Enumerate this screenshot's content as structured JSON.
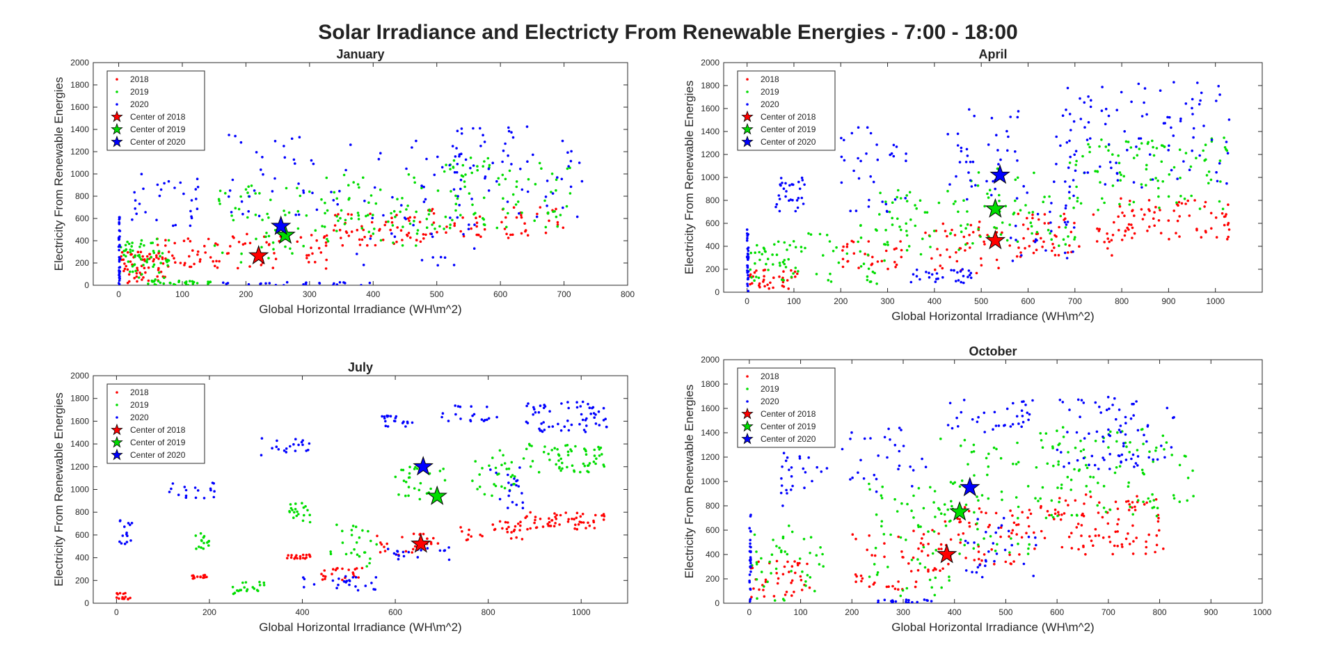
{
  "figure": {
    "title": "Solar Irradiance and Electricty From Renewable Energies - 7:00 - 18:00"
  },
  "colors": {
    "2018": "#ff0000",
    "2019": "#00dd00",
    "2020": "#0000ff",
    "axis": "#262626"
  },
  "chart_data": [
    {
      "type": "scatter",
      "title": "January",
      "xlabel": "Global Horizontal Irradiance (WH\\m^2)",
      "ylabel": "Electricity From Renewable Energies",
      "xlim": [
        -40,
        800
      ],
      "ylim": [
        0,
        2000
      ],
      "xticks": [
        0,
        100,
        200,
        300,
        400,
        500,
        600,
        700,
        800
      ],
      "yticks": [
        0,
        200,
        400,
        600,
        800,
        1000,
        1200,
        1400,
        1600,
        1800,
        2000
      ],
      "legend": [
        "2018",
        "2019",
        "2020",
        "Center of 2018",
        "Center of 2019",
        "Center of 2020"
      ],
      "legend_position": "top-left",
      "centers": [
        {
          "name": "Center of 2018",
          "x": 220,
          "y": 265
        },
        {
          "name": "Center of 2019",
          "x": 262,
          "y": 450
        },
        {
          "name": "Center of 2020",
          "x": 255,
          "y": 530
        }
      ],
      "series": [
        {
          "name": "2018",
          "clusters": [
            {
              "x0": 0,
              "x1": 80,
              "y0": 20,
              "y1": 300,
              "n": 60
            },
            {
              "x0": 60,
              "x1": 160,
              "y0": 150,
              "y1": 420,
              "n": 40
            },
            {
              "x0": 170,
              "x1": 330,
              "y0": 150,
              "y1": 480,
              "n": 45
            },
            {
              "x0": 320,
              "x1": 480,
              "y0": 350,
              "y1": 650,
              "n": 55
            },
            {
              "x0": 470,
              "x1": 700,
              "y0": 420,
              "y1": 700,
              "n": 55
            }
          ]
        },
        {
          "name": "2019",
          "clusters": [
            {
              "x0": 0,
              "x1": 80,
              "y0": 40,
              "y1": 420,
              "n": 60
            },
            {
              "x0": 40,
              "x1": 150,
              "y0": 0,
              "y1": 40,
              "n": 30
            },
            {
              "x0": 150,
              "x1": 330,
              "y0": 200,
              "y1": 900,
              "n": 55
            },
            {
              "x0": 320,
              "x1": 500,
              "y0": 350,
              "y1": 1000,
              "n": 65
            },
            {
              "x0": 480,
              "x1": 710,
              "y0": 500,
              "y1": 1150,
              "n": 85
            }
          ]
        },
        {
          "name": "2020",
          "clusters": [
            {
              "x0": 0,
              "x1": 2,
              "y0": 0,
              "y1": 620,
              "n": 40
            },
            {
              "x0": 20,
              "x1": 130,
              "y0": 500,
              "y1": 1000,
              "n": 30
            },
            {
              "x0": 150,
              "x1": 400,
              "y0": 0,
              "y1": 30,
              "n": 25
            },
            {
              "x0": 170,
              "x1": 370,
              "y0": 550,
              "y1": 1350,
              "n": 40
            },
            {
              "x0": 350,
              "x1": 560,
              "y0": 150,
              "y1": 1450,
              "n": 55
            },
            {
              "x0": 520,
              "x1": 730,
              "y0": 600,
              "y1": 1480,
              "n": 55
            }
          ]
        }
      ]
    },
    {
      "type": "scatter",
      "title": "April",
      "xlabel": "Global Horizontal Irradiance (WH\\m^2)",
      "ylabel": "Electricity From Renewable Energies",
      "xlim": [
        -50,
        1100
      ],
      "ylim": [
        0,
        2000
      ],
      "xticks": [
        0,
        100,
        200,
        300,
        400,
        500,
        600,
        700,
        800,
        900,
        1000
      ],
      "yticks": [
        0,
        200,
        400,
        600,
        800,
        1000,
        1200,
        1400,
        1600,
        1800,
        2000
      ],
      "legend": [
        "2018",
        "2019",
        "2020",
        "Center of 2018",
        "Center of 2019",
        "Center of 2020"
      ],
      "legend_position": "top-left",
      "centers": [
        {
          "name": "Center of 2018",
          "x": 530,
          "y": 450
        },
        {
          "name": "Center of 2019",
          "x": 530,
          "y": 725
        },
        {
          "name": "Center of 2020",
          "x": 540,
          "y": 1020
        }
      ],
      "series": [
        {
          "name": "2018",
          "clusters": [
            {
              "x0": 0,
              "x1": 110,
              "y0": 30,
              "y1": 200,
              "n": 35
            },
            {
              "x0": 200,
              "x1": 330,
              "y0": 200,
              "y1": 450,
              "n": 30
            },
            {
              "x0": 380,
              "x1": 560,
              "y0": 150,
              "y1": 620,
              "n": 45
            },
            {
              "x0": 560,
              "x1": 780,
              "y0": 300,
              "y1": 720,
              "n": 55
            },
            {
              "x0": 780,
              "x1": 1030,
              "y0": 450,
              "y1": 820,
              "n": 75
            }
          ]
        },
        {
          "name": "2019",
          "clusters": [
            {
              "x0": 0,
              "x1": 120,
              "y0": 100,
              "y1": 450,
              "n": 45
            },
            {
              "x0": 120,
              "x1": 300,
              "y0": 50,
              "y1": 600,
              "n": 35
            },
            {
              "x0": 280,
              "x1": 470,
              "y0": 300,
              "y1": 900,
              "n": 50
            },
            {
              "x0": 460,
              "x1": 700,
              "y0": 400,
              "y1": 1100,
              "n": 55
            },
            {
              "x0": 680,
              "x1": 1030,
              "y0": 700,
              "y1": 1350,
              "n": 95
            }
          ]
        },
        {
          "name": "2020",
          "clusters": [
            {
              "x0": 0,
              "x1": 3,
              "y0": 0,
              "y1": 580,
              "n": 30
            },
            {
              "x0": 60,
              "x1": 130,
              "y0": 700,
              "y1": 1000,
              "n": 30
            },
            {
              "x0": 200,
              "x1": 340,
              "y0": 700,
              "y1": 1450,
              "n": 35
            },
            {
              "x0": 350,
              "x1": 480,
              "y0": 80,
              "y1": 200,
              "n": 30
            },
            {
              "x0": 420,
              "x1": 580,
              "y0": 800,
              "y1": 1600,
              "n": 40
            },
            {
              "x0": 560,
              "x1": 700,
              "y0": 250,
              "y1": 1000,
              "n": 30
            },
            {
              "x0": 660,
              "x1": 1030,
              "y0": 900,
              "y1": 1830,
              "n": 100
            }
          ]
        }
      ]
    },
    {
      "type": "scatter",
      "title": "July",
      "xlabel": "Global Horizontal Irradiance (WH\\m^2)",
      "ylabel": "Electricity From Renewable Energies",
      "xlim": [
        -50,
        1100
      ],
      "ylim": [
        0,
        2000
      ],
      "xticks": [
        0,
        200,
        400,
        600,
        800,
        1000
      ],
      "yticks": [
        0,
        200,
        400,
        600,
        800,
        1000,
        1200,
        1400,
        1600,
        1800,
        2000
      ],
      "legend": [
        "2018",
        "2019",
        "2020",
        "Center of 2018",
        "Center of 2019",
        "Center of 2020"
      ],
      "legend_position": "top-left",
      "centers": [
        {
          "name": "Center of 2018",
          "x": 655,
          "y": 520
        },
        {
          "name": "Center of 2019",
          "x": 690,
          "y": 940
        },
        {
          "name": "Center of 2020",
          "x": 660,
          "y": 1200
        }
      ],
      "series": [
        {
          "name": "2018",
          "clusters": [
            {
              "x0": 0,
              "x1": 30,
              "y0": 30,
              "y1": 90,
              "n": 15
            },
            {
              "x0": 160,
              "x1": 200,
              "y0": 210,
              "y1": 250,
              "n": 15
            },
            {
              "x0": 360,
              "x1": 420,
              "y0": 390,
              "y1": 440,
              "n": 18
            },
            {
              "x0": 440,
              "x1": 530,
              "y0": 200,
              "y1": 320,
              "n": 22
            },
            {
              "x0": 560,
              "x1": 700,
              "y0": 400,
              "y1": 620,
              "n": 25
            },
            {
              "x0": 740,
              "x1": 880,
              "y0": 550,
              "y1": 720,
              "n": 30
            },
            {
              "x0": 880,
              "x1": 1050,
              "y0": 650,
              "y1": 800,
              "n": 55
            }
          ]
        },
        {
          "name": "2019",
          "clusters": [
            {
              "x0": 170,
              "x1": 200,
              "y0": 460,
              "y1": 620,
              "n": 15
            },
            {
              "x0": 250,
              "x1": 320,
              "y0": 80,
              "y1": 200,
              "n": 20
            },
            {
              "x0": 370,
              "x1": 420,
              "y0": 700,
              "y1": 880,
              "n": 20
            },
            {
              "x0": 460,
              "x1": 560,
              "y0": 300,
              "y1": 700,
              "n": 25
            },
            {
              "x0": 600,
              "x1": 710,
              "y0": 900,
              "y1": 1200,
              "n": 30
            },
            {
              "x0": 760,
              "x1": 860,
              "y0": 900,
              "y1": 1350,
              "n": 30
            },
            {
              "x0": 870,
              "x1": 1050,
              "y0": 1150,
              "y1": 1400,
              "n": 60
            }
          ]
        },
        {
          "name": "2020",
          "clusters": [
            {
              "x0": 5,
              "x1": 35,
              "y0": 520,
              "y1": 740,
              "n": 15
            },
            {
              "x0": 90,
              "x1": 220,
              "y0": 920,
              "y1": 1080,
              "n": 18
            },
            {
              "x0": 310,
              "x1": 420,
              "y0": 1300,
              "y1": 1470,
              "n": 20
            },
            {
              "x0": 400,
              "x1": 560,
              "y0": 100,
              "y1": 240,
              "n": 25
            },
            {
              "x0": 580,
              "x1": 720,
              "y0": 380,
              "y1": 500,
              "n": 20
            },
            {
              "x0": 570,
              "x1": 640,
              "y0": 1550,
              "y1": 1650,
              "n": 20
            },
            {
              "x0": 700,
              "x1": 820,
              "y0": 1600,
              "y1": 1740,
              "n": 20
            },
            {
              "x0": 800,
              "x1": 880,
              "y0": 800,
              "y1": 1200,
              "n": 20
            },
            {
              "x0": 880,
              "x1": 1060,
              "y0": 1500,
              "y1": 1770,
              "n": 60
            }
          ]
        }
      ]
    },
    {
      "type": "scatter",
      "title": "October",
      "xlabel": "Global Horizontal Irradiance (WH\\m^2)",
      "ylabel": "Electricity From Renewable Energies",
      "xlim": [
        -50,
        1000
      ],
      "ylim": [
        0,
        2000
      ],
      "xticks": [
        0,
        100,
        200,
        300,
        400,
        500,
        600,
        700,
        800,
        900,
        1000
      ],
      "yticks": [
        0,
        200,
        400,
        600,
        800,
        1000,
        1200,
        1400,
        1600,
        1800,
        2000
      ],
      "legend": [
        "2018",
        "2019",
        "2020",
        "Center of 2018",
        "Center of 2019",
        "Center of 2020"
      ],
      "legend_position": "top-left",
      "centers": [
        {
          "name": "Center of 2018",
          "x": 385,
          "y": 400
        },
        {
          "name": "Center of 2019",
          "x": 410,
          "y": 750
        },
        {
          "name": "Center of 2020",
          "x": 430,
          "y": 950
        }
      ],
      "series": [
        {
          "name": "2018",
          "clusters": [
            {
              "x0": 0,
              "x1": 120,
              "y0": 50,
              "y1": 350,
              "n": 40
            },
            {
              "x0": 200,
              "x1": 380,
              "y0": 100,
              "y1": 600,
              "n": 55
            },
            {
              "x0": 380,
              "x1": 600,
              "y0": 300,
              "y1": 800,
              "n": 70
            },
            {
              "x0": 600,
              "x1": 810,
              "y0": 400,
              "y1": 900,
              "n": 85
            }
          ]
        },
        {
          "name": "2019",
          "clusters": [
            {
              "x0": 0,
              "x1": 150,
              "y0": 0,
              "y1": 650,
              "n": 45
            },
            {
              "x0": 230,
              "x1": 400,
              "y0": 50,
              "y1": 1000,
              "n": 55
            },
            {
              "x0": 350,
              "x1": 550,
              "y0": 400,
              "y1": 1400,
              "n": 65
            },
            {
              "x0": 550,
              "x1": 870,
              "y0": 700,
              "y1": 1450,
              "n": 110
            }
          ]
        },
        {
          "name": "2020",
          "clusters": [
            {
              "x0": 0,
              "x1": 3,
              "y0": 0,
              "y1": 750,
              "n": 30
            },
            {
              "x0": 50,
              "x1": 160,
              "y0": 800,
              "y1": 1250,
              "n": 25
            },
            {
              "x0": 180,
              "x1": 350,
              "y0": 900,
              "y1": 1480,
              "n": 30
            },
            {
              "x0": 250,
              "x1": 370,
              "y0": 0,
              "y1": 30,
              "n": 20
            },
            {
              "x0": 380,
              "x1": 560,
              "y0": 1400,
              "y1": 1680,
              "n": 35
            },
            {
              "x0": 420,
              "x1": 560,
              "y0": 200,
              "y1": 700,
              "n": 30
            },
            {
              "x0": 600,
              "x1": 840,
              "y0": 1100,
              "y1": 1720,
              "n": 80
            }
          ]
        }
      ]
    }
  ]
}
